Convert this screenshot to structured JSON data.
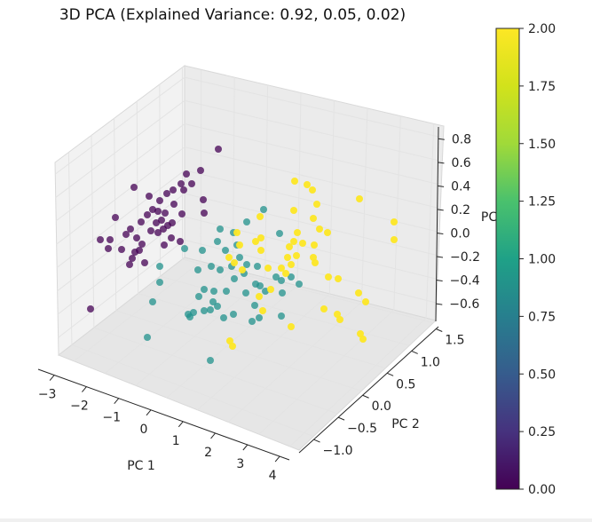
{
  "chart_data": {
    "type": "scatter",
    "projection": "3d",
    "title": "3D PCA (Explained Variance: 0.92, 0.05, 0.02)",
    "xlabel": "PC 1",
    "ylabel": "PC 2",
    "zlabel": "PC",
    "xlim": [
      -3.5,
      4.3
    ],
    "ylim": [
      -1.3,
      1.55
    ],
    "zlim": [
      -0.75,
      0.9
    ],
    "xticks": [
      "−3",
      "−2",
      "−1",
      "0",
      "1",
      "2",
      "3",
      "4"
    ],
    "yticks": [
      "−1.0",
      "−0.5",
      "0.0",
      "0.5",
      "1.0",
      "1.5"
    ],
    "zticks": [
      "−0.6",
      "−0.4",
      "−0.2",
      "0.0",
      "0.2",
      "0.4",
      "0.6",
      "0.8"
    ],
    "grid": true,
    "colormap": "viridis",
    "colorbar": {
      "min": 0.0,
      "max": 2.0,
      "ticks": [
        "0.00",
        "0.25",
        "0.50",
        "0.75",
        "1.00",
        "1.25",
        "1.50",
        "1.75",
        "2.00"
      ]
    },
    "colors": {
      "0": "#440154",
      "1": "#21918c",
      "2": "#fde725"
    }
  }
}
